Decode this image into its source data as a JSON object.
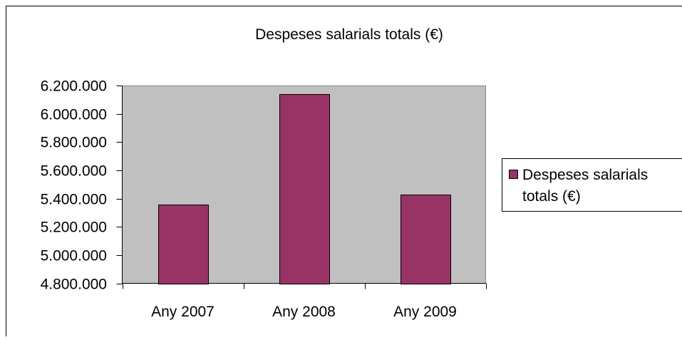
{
  "chart_data": {
    "type": "bar",
    "title": "Despeses salarials totals (€)",
    "categories": [
      "Any 2007",
      "Any 2008",
      "Any 2009"
    ],
    "series": [
      {
        "name": "Despeses salarials totals (€)",
        "values": [
          5360000,
          6140000,
          5430000
        ]
      }
    ],
    "xlabel": "",
    "ylabel": "",
    "ylim": [
      4800000,
      6200000
    ],
    "y_tick_step": 200000,
    "y_tick_labels": [
      "4.800.000",
      "5.000.000",
      "5.200.000",
      "5.400.000",
      "5.600.000",
      "5.800.000",
      "6.000.000",
      "6.200.000"
    ],
    "grid": false,
    "legend_position": "right",
    "colors": {
      "bar": "#993366",
      "plot_background": "#c0c0c0",
      "outline": "#000000"
    }
  }
}
